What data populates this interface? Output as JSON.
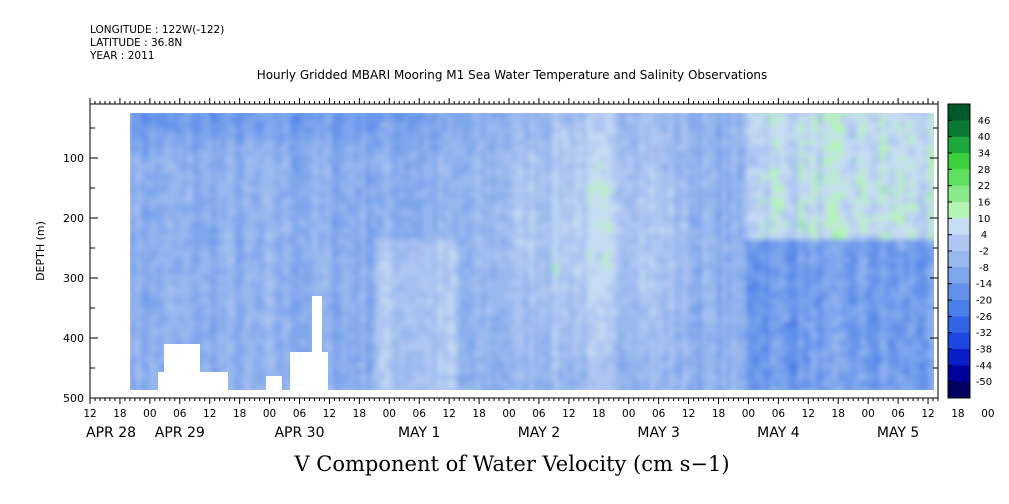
{
  "header": {
    "longitude": "LONGITUDE : 122W(-122)",
    "latitude": "LATITUDE : 36.8N",
    "year": "YEAR : 2011"
  },
  "chart_data": {
    "type": "heatmap",
    "title": "Hourly Gridded MBARI Mooring M1 Sea Water Temperature and Salinity Observations",
    "variable_label": "V Component of Water Velocity (cm s−1)",
    "ylabel": "DEPTH (m)",
    "ylim": [
      500,
      10
    ],
    "y_ticks": [
      100,
      200,
      300,
      400,
      500
    ],
    "x_start": "2011-04-28 12:00",
    "x_end": "2011-05-05 14:00",
    "x_hour_labels": [
      "12",
      "18",
      "00",
      "06",
      "12",
      "18",
      "00",
      "06",
      "12",
      "18",
      "00",
      "06",
      "12",
      "18",
      "00",
      "06",
      "12",
      "18",
      "00",
      "06",
      "12",
      "18",
      "00",
      "06",
      "12",
      "18",
      "00",
      "06",
      "12",
      "18",
      "00",
      "06",
      "12"
    ],
    "x_day_labels": [
      "APR 28",
      "APR 29",
      "APR 30",
      "MAY  1",
      "MAY  2",
      "MAY  3",
      "MAY  4",
      "MAY  5"
    ],
    "data_extent": {
      "time_start": "2011-04-28 20:00",
      "time_end": "2011-05-05 14:00",
      "depth_min": 20,
      "depth_max": 490
    },
    "colorbar": {
      "levels": [
        -50,
        -44,
        -38,
        -32,
        -26,
        -20,
        -14,
        -8,
        -2,
        4,
        10,
        16,
        22,
        28,
        34,
        40,
        46
      ],
      "labels": [
        "46",
        "40",
        "34",
        "28",
        "22",
        "16",
        "10",
        "4",
        "-2",
        "-8",
        "-14",
        "-20",
        "-26",
        "-32",
        "-38",
        "-44",
        "-50"
      ],
      "colors": [
        "#000060",
        "#00009a",
        "#0a1ec8",
        "#1e46e0",
        "#3264e6",
        "#4a7ee8",
        "#6492ea",
        "#7ea6ec",
        "#98b8ee",
        "#b0c6f2",
        "#c6dcf2",
        "#b4f4b4",
        "#8aea8a",
        "#60e060",
        "#3cd03c",
        "#1ea83c",
        "#0a7a32",
        "#005a28"
      ]
    },
    "grid": false
  }
}
